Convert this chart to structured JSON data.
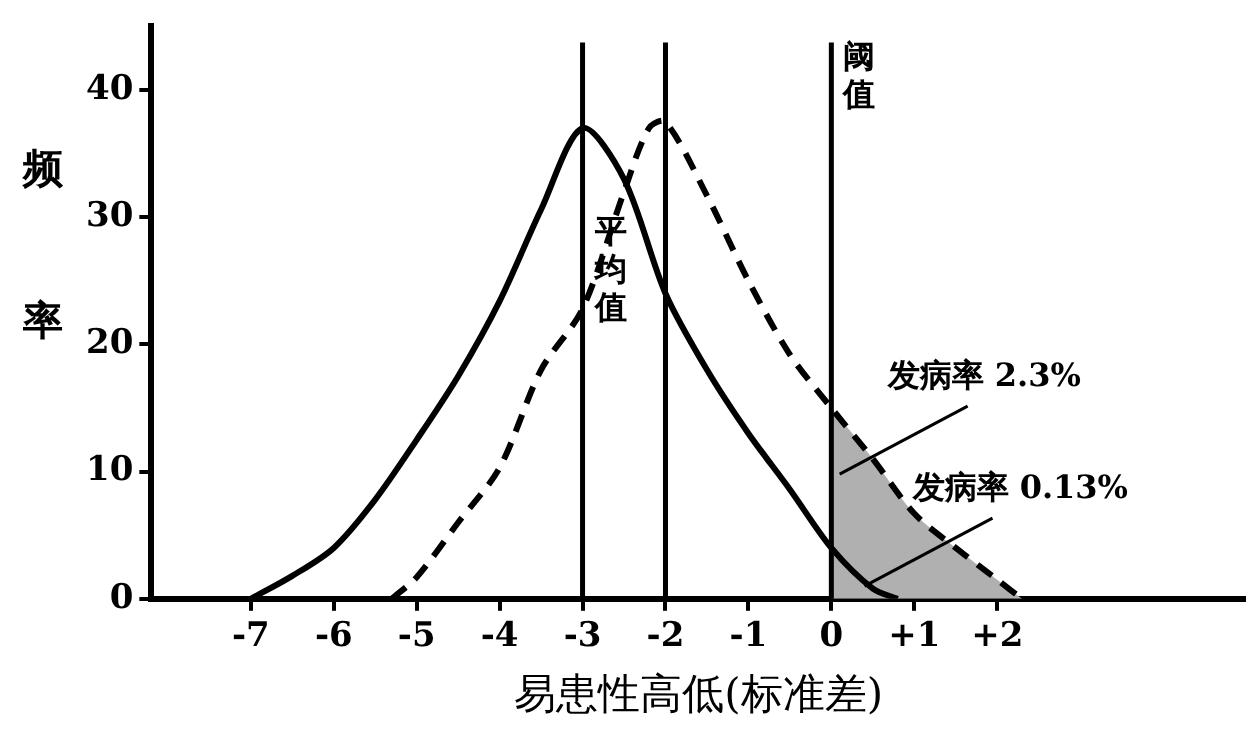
{
  "chart_data": {
    "type": "line",
    "xlabel": "易患性高低(标准差)",
    "ylabel": "频率",
    "series": [
      {
        "color": "#000000",
        "line_style": "solid",
        "x": [
          -7,
          -6.5,
          -6,
          -5.5,
          -5,
          -4.5,
          -4,
          -3.5,
          -3,
          -2.5,
          -2,
          -1.5,
          -1,
          -0.5,
          0,
          0.5,
          0.8
        ],
        "values": [
          0,
          1.8,
          4,
          7.8,
          12.5,
          17.5,
          23.4,
          30.6,
          37,
          33,
          24,
          18,
          13,
          8.6,
          4,
          0.8,
          0
        ]
      },
      {
        "color": "#000000",
        "line_style": "dashed",
        "x": [
          -5.3,
          -5,
          -4.5,
          -4,
          -3.5,
          -3,
          -2.5,
          -2.2,
          -2,
          -1.5,
          -1,
          -0.5,
          0,
          0.5,
          1,
          1.5,
          2,
          2.3
        ],
        "values": [
          0,
          1.7,
          6,
          10.3,
          18,
          22.8,
          32,
          37,
          37.5,
          31.7,
          25,
          19.2,
          15,
          11,
          6.7,
          4,
          1.5,
          0
        ]
      },
      {
        "type": "area",
        "color": "#b0b0b0",
        "x": [
          0,
          0.5,
          1,
          1.5,
          2,
          2.3
        ],
        "values": [
          15,
          11,
          6.7,
          4,
          1.5,
          0
        ]
      }
    ],
    "xlim": [
      -8.2,
      5
    ],
    "xticks": [
      {
        "value": -7,
        "label": "-7"
      },
      {
        "value": -6,
        "label": "-6"
      },
      {
        "value": -5,
        "label": "-5"
      },
      {
        "value": -4,
        "label": "-4"
      },
      {
        "value": -3,
        "label": "-3"
      },
      {
        "value": -2,
        "label": "-2"
      },
      {
        "value": -1,
        "label": "-1"
      },
      0,
      {
        "value": 1,
        "label": "+1"
      },
      {
        "value": 2,
        "label": "+2"
      }
    ],
    "ylim": [
      0,
      45
    ],
    "yticks": [
      0,
      10,
      20,
      30,
      40
    ],
    "ref_lines": [
      {
        "axis": "x",
        "value": -3,
        "label": "平均值"
      },
      {
        "axis": "x",
        "value": -2,
        "label": null
      },
      {
        "axis": "x",
        "value": 0,
        "label": "阈值"
      }
    ],
    "annotations": [
      {
        "text": "发病率 2.3%",
        "x": 0.1,
        "y": 9.8
      },
      {
        "text": "发病率 0.13%",
        "x": 0.4,
        "y": 1
      }
    ],
    "grid": false,
    "legend": false,
    "marker": "none"
  }
}
